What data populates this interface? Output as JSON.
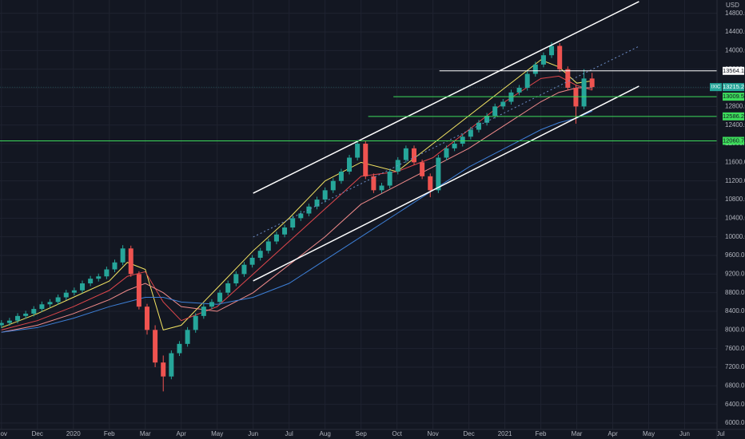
{
  "chart_data": {
    "type": "candlestick",
    "currency": "USD",
    "symbol": "IXIC",
    "grid": true,
    "up_color": "#26a69a",
    "down_color": "#ef5350",
    "ylim": [
      5863,
      15086
    ],
    "yticks": [
      {
        "value": 6000,
        "label": "6000.0"
      },
      {
        "value": 6400,
        "label": "6400.0"
      },
      {
        "value": 6800,
        "label": "6800.0"
      },
      {
        "value": 7200,
        "label": "7200.0"
      },
      {
        "value": 7600,
        "label": "7600.0"
      },
      {
        "value": 8000,
        "label": "8000.0"
      },
      {
        "value": 8400,
        "label": "8400.0"
      },
      {
        "value": 8800,
        "label": "8800.0"
      },
      {
        "value": 9200,
        "label": "9200.0"
      },
      {
        "value": 9600,
        "label": "9600.0"
      },
      {
        "value": 10000,
        "label": "10000.0"
      },
      {
        "value": 10400,
        "label": "10400.0"
      },
      {
        "value": 10800,
        "label": "10800.0"
      },
      {
        "value": 11200,
        "label": "11200.0"
      },
      {
        "value": 11600,
        "label": "11600.0"
      },
      {
        "value": 12000,
        "label": "12000.0"
      },
      {
        "value": 12400,
        "label": "12400.0"
      },
      {
        "value": 12800,
        "label": "12800.0"
      },
      {
        "value": 13200,
        "label": "13200.0"
      },
      {
        "value": 13600,
        "label": "13600.0"
      },
      {
        "value": 14000,
        "label": "14000.0"
      },
      {
        "value": 14400,
        "label": "14400.0"
      },
      {
        "value": 14800,
        "label": "14800.0"
      }
    ],
    "xlim": [
      -0.04,
      19.9
    ],
    "xticks": [
      {
        "value": 0,
        "label": "Nov"
      },
      {
        "value": 1,
        "label": "Dec"
      },
      {
        "value": 2,
        "label": "2020"
      },
      {
        "value": 3,
        "label": "Feb"
      },
      {
        "value": 4,
        "label": "Mar"
      },
      {
        "value": 5,
        "label": "Apr"
      },
      {
        "value": 6,
        "label": "May"
      },
      {
        "value": 7,
        "label": "Jun"
      },
      {
        "value": 8,
        "label": "Jul"
      },
      {
        "value": 9,
        "label": "Aug"
      },
      {
        "value": 10,
        "label": "Sep"
      },
      {
        "value": 11,
        "label": "Oct"
      },
      {
        "value": 12,
        "label": "Nov"
      },
      {
        "value": 13,
        "label": "Dec"
      },
      {
        "value": 14,
        "label": "2021"
      },
      {
        "value": 15,
        "label": "Feb"
      },
      {
        "value": 16,
        "label": "Mar"
      },
      {
        "value": 17,
        "label": "Apr"
      },
      {
        "value": 18,
        "label": "May"
      },
      {
        "value": 19,
        "label": "Jun"
      },
      {
        "value": 20,
        "label": "Jul"
      }
    ],
    "candle_x": [
      0,
      0.225,
      0.45,
      0.675,
      0.9,
      1.125,
      1.35,
      1.575,
      1.8,
      2.025,
      2.25,
      2.475,
      2.7,
      2.925,
      3.15,
      3.375,
      3.6,
      3.825,
      4.05,
      4.275,
      4.5,
      4.725,
      4.95,
      5.175,
      5.4,
      5.625,
      5.85,
      6.075,
      6.3,
      6.525,
      6.75,
      6.975,
      7.2,
      7.425,
      7.65,
      7.875,
      8.1,
      8.325,
      8.55,
      8.775,
      9,
      9.225,
      9.45,
      9.675,
      9.9,
      10.125,
      10.35,
      10.575,
      10.8,
      11.025,
      11.25,
      11.475,
      11.7,
      11.925,
      12.15,
      12.375,
      12.6,
      12.825,
      13.05,
      13.275,
      13.5,
      13.725,
      13.95,
      14.175,
      14.4,
      14.625,
      14.85,
      15.075,
      15.3,
      15.525,
      15.75,
      15.975,
      16.2,
      16.425
    ],
    "candles": [
      [
        8100,
        8210,
        8040,
        8150
      ],
      [
        8150,
        8260,
        8090,
        8200
      ],
      [
        8200,
        8360,
        8140,
        8300
      ],
      [
        8300,
        8410,
        8240,
        8350
      ],
      [
        8350,
        8510,
        8290,
        8450
      ],
      [
        8450,
        8610,
        8390,
        8550
      ],
      [
        8550,
        8660,
        8490,
        8600
      ],
      [
        8600,
        8760,
        8540,
        8700
      ],
      [
        8700,
        8860,
        8640,
        8800
      ],
      [
        8800,
        8910,
        8740,
        8850
      ],
      [
        8850,
        9060,
        8790,
        9000
      ],
      [
        9000,
        9160,
        8940,
        9100
      ],
      [
        9100,
        9210,
        9040,
        9150
      ],
      [
        9150,
        9360,
        9090,
        9300
      ],
      [
        9300,
        9510,
        9240,
        9450
      ],
      [
        9450,
        9820,
        9390,
        9750
      ],
      [
        9750,
        9810,
        9140,
        9200
      ],
      [
        9200,
        9260,
        8440,
        8500
      ],
      [
        8500,
        8560,
        7900,
        8000
      ],
      [
        8000,
        8100,
        7200,
        7300
      ],
      [
        7300,
        7450,
        6680,
        7000
      ],
      [
        7000,
        7560,
        6940,
        7500
      ],
      [
        7500,
        7760,
        7440,
        7700
      ],
      [
        7700,
        8060,
        7640,
        8000
      ],
      [
        8000,
        8360,
        7940,
        8300
      ],
      [
        8300,
        8560,
        8240,
        8500
      ],
      [
        8500,
        8660,
        8440,
        8600
      ],
      [
        8600,
        8860,
        8540,
        8800
      ],
      [
        8800,
        9060,
        8740,
        9000
      ],
      [
        9000,
        9260,
        8940,
        9200
      ],
      [
        9200,
        9460,
        9140,
        9400
      ],
      [
        9400,
        9610,
        9340,
        9550
      ],
      [
        9550,
        9760,
        9490,
        9700
      ],
      [
        9700,
        9960,
        9640,
        9900
      ],
      [
        9900,
        10110,
        9840,
        10050
      ],
      [
        10050,
        10260,
        9990,
        10200
      ],
      [
        10200,
        10460,
        10140,
        10400
      ],
      [
        10400,
        10560,
        10340,
        10500
      ],
      [
        10500,
        10710,
        10440,
        10650
      ],
      [
        10650,
        10860,
        10590,
        10800
      ],
      [
        10800,
        11060,
        10740,
        11000
      ],
      [
        11000,
        11260,
        10940,
        11200
      ],
      [
        11200,
        11460,
        11140,
        11400
      ],
      [
        11400,
        11760,
        11340,
        11700
      ],
      [
        11700,
        12080,
        11640,
        12000
      ],
      [
        12000,
        12060,
        11240,
        11300
      ],
      [
        11300,
        11360,
        10940,
        11000
      ],
      [
        11000,
        11160,
        10940,
        11100
      ],
      [
        11100,
        11460,
        11040,
        11400
      ],
      [
        11400,
        11710,
        11340,
        11650
      ],
      [
        11650,
        11960,
        11590,
        11900
      ],
      [
        11900,
        11960,
        11540,
        11600
      ],
      [
        11600,
        11660,
        11240,
        11300
      ],
      [
        11300,
        11360,
        10850,
        11000
      ],
      [
        11000,
        11760,
        10940,
        11700
      ],
      [
        11700,
        11960,
        11640,
        11900
      ],
      [
        11900,
        12060,
        11840,
        12000
      ],
      [
        12000,
        12210,
        11940,
        12150
      ],
      [
        12150,
        12360,
        12090,
        12300
      ],
      [
        12300,
        12510,
        12240,
        12450
      ],
      [
        12450,
        12660,
        12390,
        12600
      ],
      [
        12600,
        12860,
        12540,
        12800
      ],
      [
        12800,
        12960,
        12740,
        12900
      ],
      [
        12900,
        13160,
        12840,
        13100
      ],
      [
        13100,
        13260,
        13040,
        13200
      ],
      [
        13200,
        13560,
        13140,
        13500
      ],
      [
        13500,
        13760,
        13440,
        13700
      ],
      [
        13700,
        13960,
        13640,
        13900
      ],
      [
        13900,
        14180,
        13840,
        14100
      ],
      [
        14100,
        14160,
        13540,
        13600
      ],
      [
        13600,
        13660,
        13140,
        13200
      ],
      [
        13200,
        13260,
        12430,
        12800
      ],
      [
        12800,
        13600,
        12740,
        13400
      ],
      [
        13400,
        13520,
        13150,
        13215.2
      ]
    ],
    "ma_x": [
      0,
      1,
      2,
      3,
      3.5,
      4,
      4.5,
      5,
      6,
      7,
      8,
      9,
      10,
      11,
      12,
      13,
      14,
      15,
      15.5,
      16,
      16.43
    ],
    "series": [
      {
        "color": "#f5e663",
        "values": [
          8050,
          8350,
          8700,
          9050,
          9450,
          9300,
          8000,
          8100,
          8900,
          9700,
          10400,
          11200,
          11600,
          11400,
          12000,
          12600,
          13200,
          13800,
          13650,
          13300,
          13350
        ]
      },
      {
        "color": "#e0474c",
        "values": [
          8000,
          8200,
          8500,
          8850,
          9150,
          9250,
          8600,
          8200,
          8500,
          9200,
          9900,
          10600,
          11300,
          11400,
          11700,
          12300,
          12900,
          13400,
          13450,
          13250,
          13150
        ]
      },
      {
        "color": "#f08a8a",
        "values": [
          7950,
          8100,
          8350,
          8650,
          8850,
          9000,
          8800,
          8500,
          8400,
          8800,
          9400,
          10000,
          10700,
          11100,
          11500,
          11900,
          12400,
          12900,
          13100,
          13200,
          13200
        ]
      },
      {
        "color": "#3d7fd6",
        "values": [
          7950,
          8050,
          8250,
          8500,
          8600,
          8700,
          8700,
          8600,
          8550,
          8700,
          9000,
          9500,
          10000,
          10500,
          11000,
          11500,
          11900,
          12300,
          12450,
          12550,
          12700
        ]
      }
    ],
    "channels": [
      {
        "x": [
          7.0,
          17.73
        ],
        "y": [
          10937,
          15052
        ],
        "color": "#ffffff",
        "dashed": false
      },
      {
        "x": [
          7.0,
          17.73
        ],
        "y": [
          9052,
          13235
        ],
        "color": "#ffffff",
        "dashed": false
      },
      {
        "x": [
          7.0,
          17.73
        ],
        "y": [
          9995,
          14092
        ],
        "color": "#6f8fc9",
        "dashed": true
      }
    ],
    "levels": [
      {
        "value": 13564.1,
        "x_start": 12.18,
        "color": "#ffffff"
      },
      {
        "value": 13009.5,
        "x_start": 10.9,
        "color": "#3ddc5b"
      },
      {
        "value": 12586.2,
        "x_start": 10.2,
        "color": "#3ddc5b"
      },
      {
        "value": 12060.7,
        "x_start": -0.04,
        "color": "#3ddc5b"
      }
    ],
    "last_price_color": "#26a69a"
  }
}
